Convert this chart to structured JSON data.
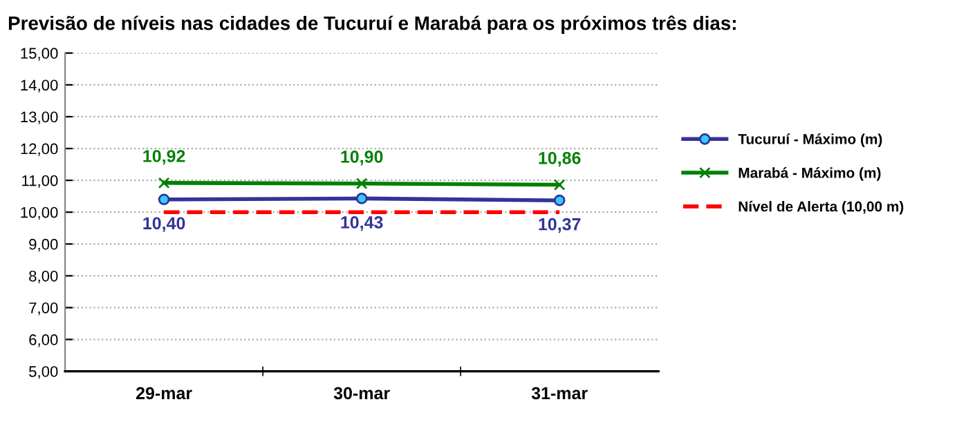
{
  "chart_data": {
    "type": "line",
    "title": "Previsão de níveis nas cidades de Tucuruí e Marabá para os próximos três dias:",
    "categories": [
      "29-mar",
      "30-mar",
      "31-mar"
    ],
    "series": [
      {
        "name": "Tucuruí - Máximo (m)",
        "color": "#333399",
        "values": [
          10.4,
          10.43,
          10.37
        ],
        "marker": "circle",
        "value_labels": [
          "10,40",
          "10,43",
          "10,37"
        ]
      },
      {
        "name": "Marabá - Máximo (m)",
        "color": "#008000",
        "values": [
          10.92,
          10.9,
          10.86
        ],
        "marker": "cross",
        "value_labels": [
          "10,92",
          "10,90",
          "10,86"
        ]
      },
      {
        "name": "Nível de Alerta (10,00 m)",
        "color": "#ff0000",
        "values": [
          10.0,
          10.0,
          10.0
        ],
        "marker": "none",
        "line_style": "dashed"
      }
    ],
    "ylim": [
      5,
      15
    ],
    "yticks": [
      {
        "value": 5,
        "label": "5,00"
      },
      {
        "value": 6,
        "label": "6,00"
      },
      {
        "value": 7,
        "label": "7,00"
      },
      {
        "value": 8,
        "label": "8,00"
      },
      {
        "value": 9,
        "label": "9,00"
      },
      {
        "value": 10,
        "label": "10,00"
      },
      {
        "value": 11,
        "label": "11,00"
      },
      {
        "value": 12,
        "label": "12,00"
      },
      {
        "value": 13,
        "label": "13,00"
      },
      {
        "value": 14,
        "label": "14,00"
      },
      {
        "value": 15,
        "label": "15,00"
      }
    ],
    "grid": "y",
    "legend": "right"
  }
}
